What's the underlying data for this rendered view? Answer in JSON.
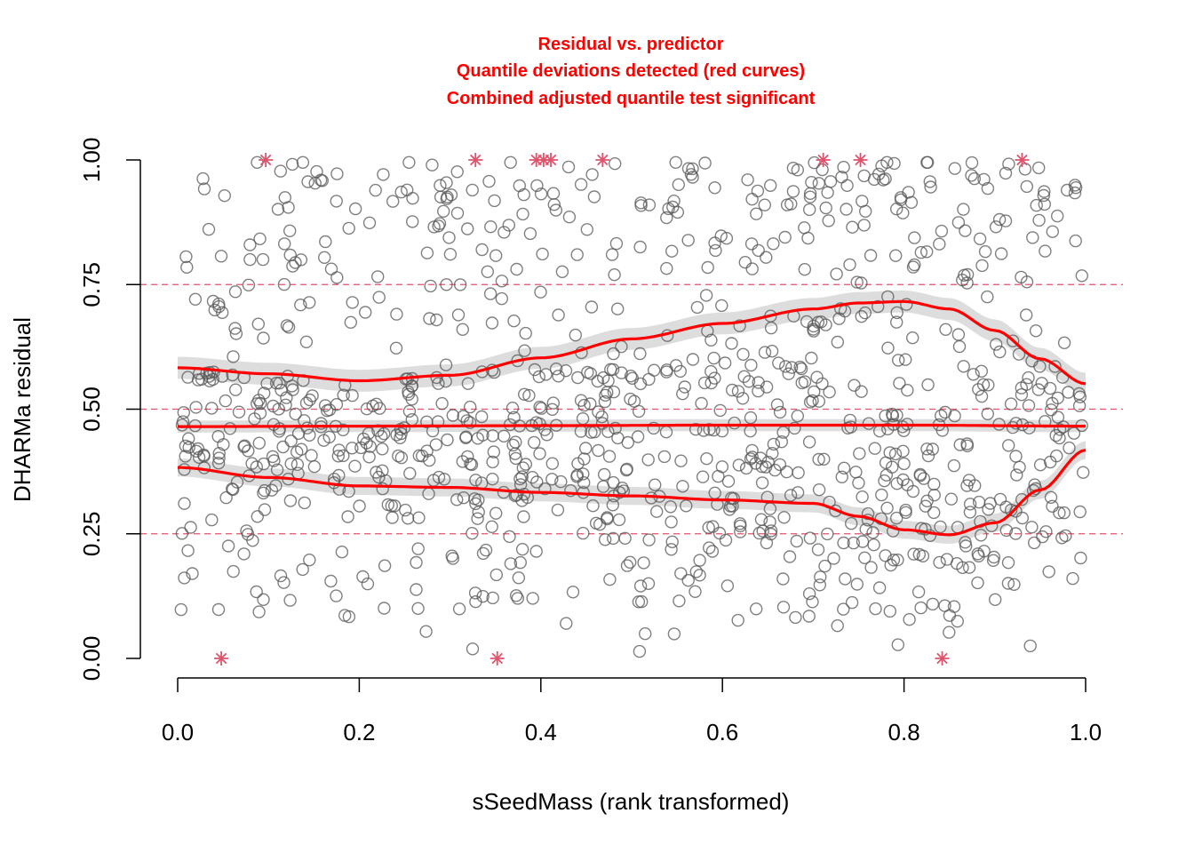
{
  "chart_data": {
    "type": "scatter",
    "title_lines": [
      "Residual vs. predictor",
      "Quantile deviations detected (red curves)",
      "Combined adjusted quantile test significant"
    ],
    "xlabel": "sSeedMass (rank transformed)",
    "ylabel": "DHARMa residual",
    "xlim": [
      0,
      1
    ],
    "ylim": [
      0,
      1
    ],
    "x_ticks": [
      "0.0",
      "0.2",
      "0.4",
      "0.6",
      "0.8",
      "1.0"
    ],
    "y_ticks": [
      "0.00",
      "0.25",
      "0.50",
      "0.75",
      "1.00"
    ],
    "reference_lines": [
      0.25,
      0.5,
      0.75
    ],
    "colors": {
      "points": "#555555",
      "outliers": "#df536b",
      "quantile_curves": "#ff0000",
      "reference_lines": "#df536b",
      "band": "#d9d9d9",
      "title": "#ff0000"
    },
    "outliers": [
      {
        "x": 0.048,
        "y": 0.0
      },
      {
        "x": 0.097,
        "y": 1.0
      },
      {
        "x": 0.328,
        "y": 1.0
      },
      {
        "x": 0.352,
        "y": 0.0
      },
      {
        "x": 0.395,
        "y": 1.0
      },
      {
        "x": 0.403,
        "y": 1.0
      },
      {
        "x": 0.411,
        "y": 1.0
      },
      {
        "x": 0.468,
        "y": 1.0
      },
      {
        "x": 0.711,
        "y": 1.0
      },
      {
        "x": 0.752,
        "y": 1.0
      },
      {
        "x": 0.842,
        "y": 0.0
      },
      {
        "x": 0.93,
        "y": 1.0
      }
    ],
    "quantile_curves": [
      {
        "quantile": 0.25,
        "x": [
          0.0,
          0.1,
          0.2,
          0.3,
          0.4,
          0.5,
          0.6,
          0.7,
          0.75,
          0.8,
          0.85,
          0.9,
          0.95,
          1.0
        ],
        "y": [
          0.383,
          0.363,
          0.346,
          0.343,
          0.333,
          0.326,
          0.318,
          0.311,
          0.285,
          0.258,
          0.248,
          0.272,
          0.338,
          0.418
        ],
        "band": 0.018
      },
      {
        "quantile": 0.5,
        "x": [
          0.0,
          0.2,
          0.4,
          0.6,
          0.8,
          1.0
        ],
        "y": [
          0.465,
          0.466,
          0.467,
          0.468,
          0.468,
          0.466
        ],
        "band": 0.012
      },
      {
        "quantile": 0.75,
        "x": [
          0.0,
          0.1,
          0.2,
          0.3,
          0.4,
          0.5,
          0.6,
          0.7,
          0.75,
          0.8,
          0.85,
          0.9,
          0.95,
          1.0
        ],
        "y": [
          0.583,
          0.571,
          0.557,
          0.568,
          0.603,
          0.641,
          0.672,
          0.701,
          0.713,
          0.716,
          0.701,
          0.658,
          0.601,
          0.551
        ],
        "band": 0.022
      }
    ]
  }
}
